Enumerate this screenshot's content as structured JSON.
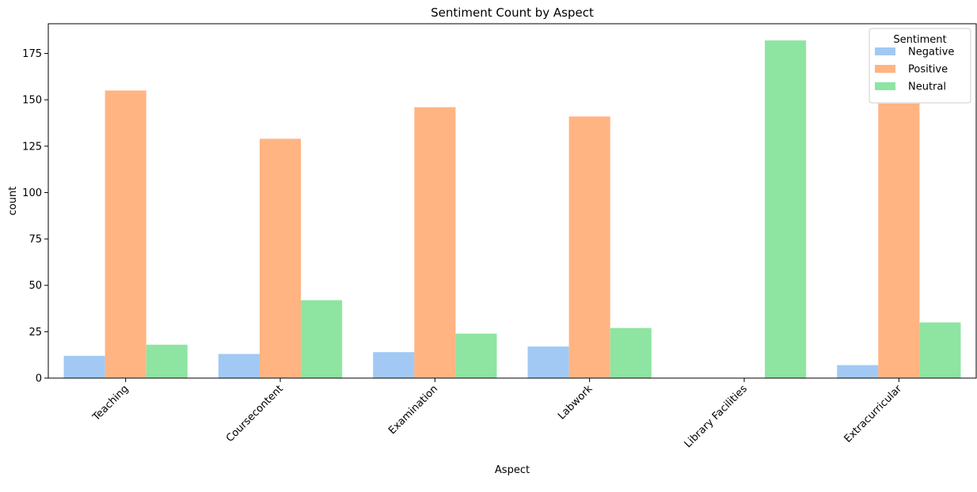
{
  "chart_data": {
    "type": "bar",
    "title": "Sentiment Count by Aspect",
    "xlabel": "Aspect",
    "ylabel": "count",
    "categories": [
      "Teaching",
      "Coursecontent",
      "Examination",
      "Labwork",
      "Library Facilities",
      "Extracurricular"
    ],
    "series": [
      {
        "name": "Negative",
        "color": "#a1c9f4",
        "values": [
          12,
          13,
          14,
          17,
          0,
          7
        ]
      },
      {
        "name": "Positive",
        "color": "#ffb482",
        "values": [
          155,
          129,
          146,
          141,
          0,
          148
        ]
      },
      {
        "name": "Neutral",
        "color": "#8de5a1",
        "values": [
          18,
          42,
          24,
          27,
          182,
          30
        ]
      }
    ],
    "ylim": [
      0,
      191
    ],
    "yticks": [
      0,
      25,
      50,
      75,
      100,
      125,
      150,
      175
    ],
    "legend": {
      "title": "Sentiment",
      "position": "top-right"
    },
    "grid": false
  }
}
